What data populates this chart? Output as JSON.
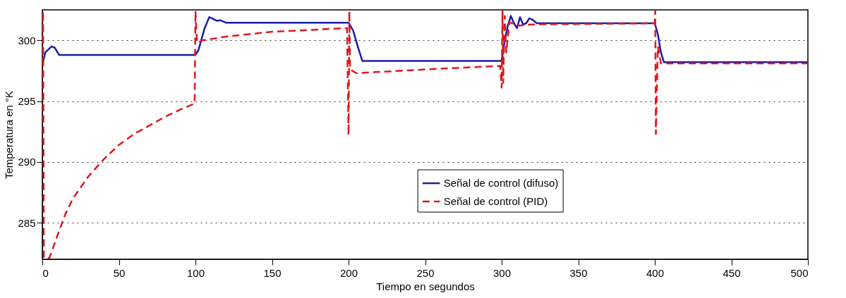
{
  "chart_data": {
    "type": "line",
    "xlabel": "Tiempo en segundos",
    "ylabel": "Temperatura en °K",
    "xlim": [
      0,
      500
    ],
    "xticks": [
      0,
      50,
      100,
      150,
      200,
      250,
      300,
      350,
      400,
      450,
      500
    ],
    "ylim": [
      282,
      302.5
    ],
    "yticks": [
      285,
      290,
      295,
      300
    ],
    "grid": "y",
    "legend": "center",
    "marker": "none",
    "series": [
      {
        "name": "Señal de control (difuso)",
        "color": "#1c1ca8",
        "line_style": "solid",
        "x": [
          0,
          2,
          6,
          8,
          11,
          100,
          102,
          106,
          109,
          111,
          114,
          116,
          120,
          200,
          203,
          206,
          209,
          300,
          302,
          304,
          306,
          308,
          310,
          312,
          314,
          316,
          318,
          320,
          323,
          400,
          402,
          404,
          406,
          500
        ],
        "values": [
          298,
          299.0,
          299.5,
          299.4,
          298.8,
          298.8,
          299.2,
          301.0,
          301.9,
          301.8,
          301.6,
          301.65,
          301.45,
          301.45,
          300.8,
          299.5,
          298.3,
          298.3,
          300.0,
          301.2,
          302.0,
          301.4,
          301.0,
          301.9,
          301.3,
          301.4,
          301.8,
          301.7,
          301.4,
          301.4,
          300.5,
          299.0,
          298.2,
          298.2
        ]
      },
      {
        "name": "Señal de control (PID)",
        "color": "#e0181c",
        "line_style": "dashed",
        "x": [
          0,
          0.5,
          1,
          4.6,
          10,
          15,
          20,
          30,
          40,
          50,
          60,
          70,
          80,
          90,
          99.5,
          100,
          101,
          105,
          120,
          150,
          199,
          200,
          200.5,
          201,
          205,
          250,
          299,
          300,
          300.5,
          301,
          302,
          303,
          305,
          310,
          320,
          400,
          400.3,
          400.7,
          402,
          404,
          500
        ],
        "values": [
          298,
          302.4,
          282.1,
          282.1,
          284.0,
          285.7,
          287.0,
          288.8,
          290.2,
          291.4,
          292.3,
          293.0,
          293.7,
          294.3,
          294.8,
          302.4,
          299.8,
          300.0,
          300.3,
          300.7,
          301.0,
          292.2,
          302.4,
          297.6,
          297.3,
          297.6,
          297.9,
          296.1,
          302.4,
          296.5,
          302.0,
          299.0,
          301.5,
          301.2,
          301.3,
          301.4,
          302.4,
          292.3,
          299.5,
          298.1,
          298.1
        ]
      }
    ]
  }
}
